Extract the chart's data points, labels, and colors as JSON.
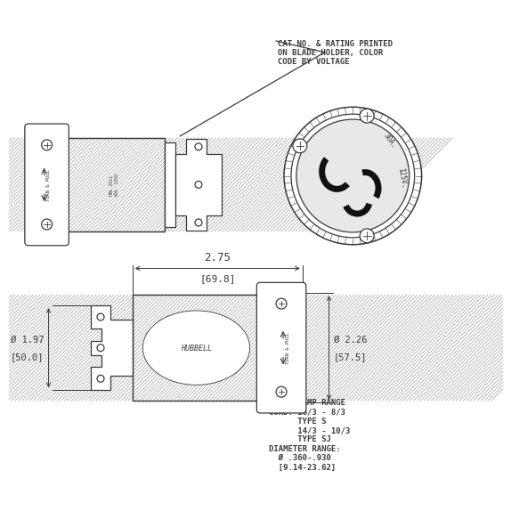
{
  "bg_color": "#ffffff",
  "lc": "#3a3a3a",
  "lw": 0.9,
  "annotation_text": "CAT NO. & RATING PRINTED\nON BLADE HOLDER, COLOR\nCODE BY VOLTAGE",
  "dim_275": "2.75",
  "dim_698": "[69.8]",
  "dim_197": "Ø 1.97",
  "dim_500": "[50.0]",
  "dim_226": "Ø 2.26",
  "dim_575": "[57.5]",
  "cord_text": "CORD CLAMP RANGE\nCORD: 16/3 - 8/3\n      TYPE S\n      14/3 - 10/3\n      TYPE SJ\nDIAMETER RANGE:\n  Ø .360-.930\n  [9.14-23.62]",
  "turn_pull_text": "TURN & PULL",
  "label_body": "HBL 2511\n30A  125V",
  "label_hubbell": "HUBBELL"
}
